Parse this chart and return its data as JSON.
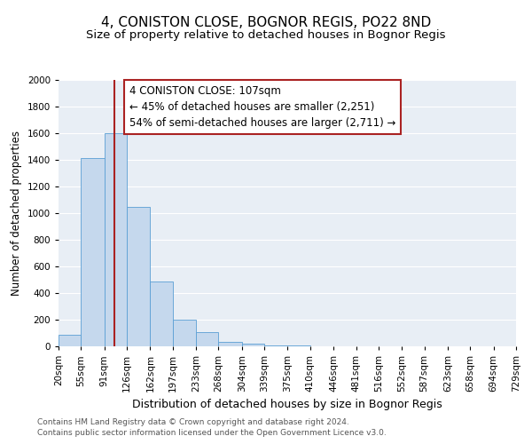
{
  "title": "4, CONISTON CLOSE, BOGNOR REGIS, PO22 8ND",
  "subtitle": "Size of property relative to detached houses in Bognor Regis",
  "xlabel": "Distribution of detached houses by size in Bognor Regis",
  "ylabel": "Number of detached properties",
  "bin_edges": [
    20,
    55,
    91,
    126,
    162,
    197,
    233,
    268,
    304,
    339,
    375,
    410,
    446,
    481,
    516,
    552,
    587,
    623,
    658,
    694,
    729
  ],
  "bar_heights": [
    85,
    1415,
    1600,
    1050,
    490,
    200,
    105,
    35,
    20,
    10,
    10,
    0,
    0,
    0,
    0,
    0,
    0,
    0,
    0,
    0
  ],
  "bar_facecolor": "#c5d8ed",
  "bar_edgecolor": "#5a9fd4",
  "property_size": 107,
  "red_line_color": "#aa2222",
  "annotation_line1": "4 CONISTON CLOSE: 107sqm",
  "annotation_line2": "← 45% of detached houses are smaller (2,251)",
  "annotation_line3": "54% of semi-detached houses are larger (2,711) →",
  "annotation_box_edgecolor": "#aa2222",
  "annotation_box_facecolor": "#ffffff",
  "ylim": [
    0,
    2000
  ],
  "yticks": [
    0,
    200,
    400,
    600,
    800,
    1000,
    1200,
    1400,
    1600,
    1800,
    2000
  ],
  "background_color": "#e8eef5",
  "grid_color": "#ffffff",
  "footer_line1": "Contains HM Land Registry data © Crown copyright and database right 2024.",
  "footer_line2": "Contains public sector information licensed under the Open Government Licence v3.0.",
  "title_fontsize": 11,
  "subtitle_fontsize": 9.5,
  "xlabel_fontsize": 9,
  "ylabel_fontsize": 8.5,
  "tick_fontsize": 7.5,
  "annotation_fontsize": 8.5,
  "footer_fontsize": 6.5
}
